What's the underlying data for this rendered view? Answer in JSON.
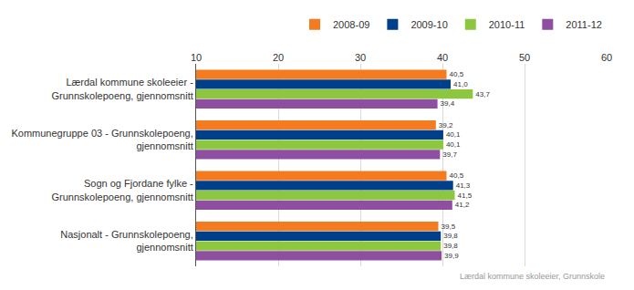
{
  "chart_data": {
    "type": "bar",
    "orientation": "horizontal",
    "categories": [
      "Lærdal kommune skoleeier - Grunnskolepoeng, gjennomsnitt",
      "Kommunegruppe 03 - Grunnskolepoeng, gjennomsnitt",
      "Sogn og Fjordane fylke - Grunnskolepoeng, gjennomsnitt",
      "Nasjonalt - Grunnskolepoeng, gjennomsnitt"
    ],
    "series": [
      {
        "name": "2008-09",
        "color": "#f47b20",
        "values": [
          40.5,
          39.2,
          40.5,
          39.5
        ],
        "value_labels": [
          "40,5",
          "39,2",
          "40,5",
          "39,5"
        ]
      },
      {
        "name": "2009-10",
        "color": "#003f8a",
        "values": [
          41.0,
          40.1,
          41.3,
          39.8
        ],
        "value_labels": [
          "41,0",
          "40,1",
          "41,3",
          "39,8"
        ]
      },
      {
        "name": "2010-11",
        "color": "#8dc63f",
        "values": [
          43.7,
          40.1,
          41.5,
          39.8
        ],
        "value_labels": [
          "43,7",
          "40,1",
          "41,5",
          "39,8"
        ]
      },
      {
        "name": "2011-12",
        "color": "#8e4fa0",
        "values": [
          39.4,
          39.7,
          41.2,
          39.9
        ],
        "value_labels": [
          "39,4",
          "39,7",
          "41,2",
          "39,9"
        ]
      }
    ],
    "xlim": [
      10,
      60
    ],
    "xticks": [
      10,
      20,
      30,
      40,
      50,
      60
    ],
    "grid": true,
    "legend": "top",
    "data_labels": true,
    "annotations": [
      "Lærdal kommune skoleeier, Grunnskole"
    ]
  }
}
